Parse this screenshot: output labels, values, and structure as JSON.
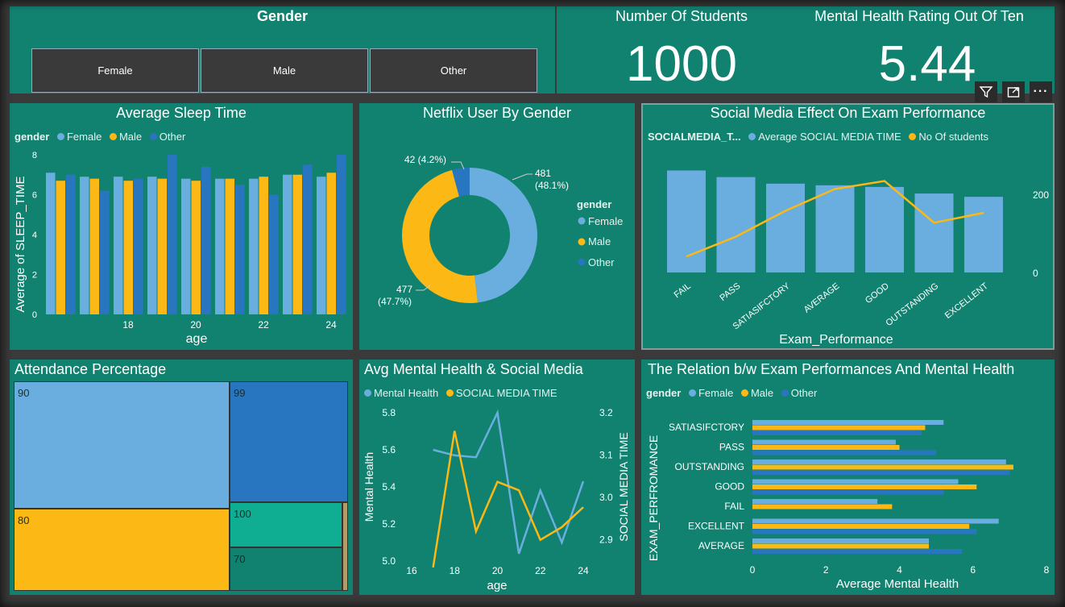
{
  "colors": {
    "female": "#6aaee0",
    "male": "#fcb814",
    "other": "#2876c0",
    "panel": "#128270"
  },
  "gender_slicer": {
    "title": "Gender",
    "options": [
      "Female",
      "Male",
      "Other"
    ]
  },
  "students_card": {
    "label": "Number Of Students",
    "value": "1000"
  },
  "mental_card": {
    "label": "Mental Health Rating Out Of Ten",
    "value": "5.44"
  },
  "toolbar": {
    "filter_icon": "filter-icon",
    "focus_icon": "focus-mode-icon",
    "more_icon": "more-options-icon",
    "more_label": "···"
  },
  "sleep_chart": {
    "title": "Average Sleep Time",
    "legend_title": "gender",
    "series_names": [
      "Female",
      "Male",
      "Other"
    ],
    "ylabel": "Average of SLEEP_TIME",
    "xlabel": "age",
    "yticks": [
      "0",
      "2",
      "4",
      "6",
      "8"
    ],
    "xticks": [
      "18",
      "20",
      "22",
      "24"
    ]
  },
  "netflix_chart": {
    "title": "Netflix User By Gender",
    "legend_title": "gender",
    "legend": [
      "Female",
      "Male",
      "Other"
    ],
    "labels": {
      "female_a": "481",
      "female_b": "(48.1%)",
      "male_a": "477",
      "male_b": "(47.7%)",
      "other": "42 (4.2%)"
    }
  },
  "social_chart": {
    "title": "Social Media Effect On Exam Performance",
    "legend_title": "SOCIALMEDIA_T...",
    "legend": [
      "Average SOCIAL MEDIA TIME",
      "No Of students"
    ],
    "xlabel": "Exam_Performance",
    "yticks_right": [
      "200",
      "0"
    ]
  },
  "attendance_chart": {
    "title": "Attendance Percentage"
  },
  "avgmental_chart": {
    "title": "Avg Mental Health & Social Media",
    "legend": [
      "Mental Health",
      "SOCIAL MEDIA TIME"
    ],
    "ylabel_left": "Mental Health",
    "ylabel_right": "SOCIAL MEDIA TIME",
    "xlabel": "age",
    "yticks_left": [
      "5.8",
      "5.6",
      "5.4",
      "5.2",
      "5.0"
    ],
    "yticks_right": [
      "3.2",
      "3.1",
      "3.0",
      "2.9"
    ],
    "xticks": [
      "16",
      "18",
      "20",
      "22",
      "24"
    ]
  },
  "relation_chart": {
    "title": "The Relation b/w Exam Performances And Mental Health",
    "legend_title": "gender",
    "series_names": [
      "Female",
      "Male",
      "Other"
    ],
    "ylabel": "EXAM_PERFROMANCE",
    "xlabel": "Average Mental Health",
    "xticks": [
      "0",
      "2",
      "4",
      "6",
      "8"
    ]
  },
  "chart_data": [
    {
      "type": "bar",
      "title": "Average Sleep Time",
      "xlabel": "age",
      "ylabel": "Average of SLEEP_TIME",
      "ylim": [
        0,
        8
      ],
      "categories": [
        16,
        17,
        18,
        19,
        20,
        21,
        22,
        23,
        24
      ],
      "series": [
        {
          "name": "Female",
          "values": [
            7.1,
            6.9,
            6.9,
            6.9,
            6.8,
            6.8,
            6.8,
            7.0,
            6.9
          ]
        },
        {
          "name": "Male",
          "values": [
            6.7,
            6.8,
            6.7,
            6.8,
            6.7,
            6.8,
            6.9,
            7.0,
            7.1
          ]
        },
        {
          "name": "Other",
          "values": [
            7.0,
            6.2,
            6.8,
            8.0,
            7.4,
            6.5,
            6.0,
            7.5,
            8.0
          ]
        }
      ],
      "legend": "top-left",
      "grid": false
    },
    {
      "type": "pie",
      "title": "Netflix User By Gender",
      "donut": true,
      "categories": [
        "Female",
        "Male",
        "Other"
      ],
      "values": [
        481,
        477,
        42
      ],
      "percent": [
        48.1,
        47.7,
        4.2
      ],
      "legend": "right"
    },
    {
      "type": "bar",
      "title": "Social Media Effect On Exam Performance",
      "xlabel": "Exam_Performance",
      "categories": [
        "FAIL",
        "PASS",
        "SATIASIFCTORY",
        "AVERAGE",
        "GOOD",
        "OUTSTANDING",
        "EXCELLENT"
      ],
      "series": [
        {
          "name": "Average SOCIAL MEDIA TIME",
          "type": "bar",
          "values": [
            3.1,
            2.9,
            2.7,
            2.65,
            2.6,
            2.4,
            2.3
          ]
        },
        {
          "name": "No Of students",
          "type": "line",
          "values": [
            40,
            90,
            155,
            210,
            230,
            125,
            150
          ]
        }
      ],
      "ylim_right": [
        0,
        300
      ],
      "legend": "top-left"
    },
    {
      "type": "treemap",
      "title": "Attendance Percentage",
      "categories": [
        "90",
        "80",
        "99",
        "100",
        "70"
      ],
      "values": [
        47,
        29,
        15,
        6,
        6
      ]
    },
    {
      "type": "line",
      "title": "Avg Mental Health & Social Media",
      "xlabel": "age",
      "x": [
        17,
        18,
        19,
        20,
        21,
        22,
        23,
        24
      ],
      "series": [
        {
          "name": "Mental Health",
          "axis": "left",
          "values": [
            5.6,
            5.57,
            5.56,
            5.8,
            5.04,
            5.38,
            5.1,
            5.43
          ]
        },
        {
          "name": "SOCIAL MEDIA TIME",
          "axis": "right",
          "values": [
            2.835,
            3.157,
            2.92,
            3.037,
            3.017,
            2.9,
            2.93,
            2.977
          ]
        }
      ],
      "ylim_left": [
        5.0,
        5.8
      ],
      "ylim_right": [
        2.85,
        3.2
      ],
      "legend": "top-left"
    },
    {
      "type": "bar",
      "orientation": "horizontal",
      "title": "The Relation b/w Exam Performances And Mental Health",
      "xlabel": "Average Mental Health",
      "ylabel": "EXAM_PERFROMANCE",
      "xlim": [
        0,
        8
      ],
      "categories": [
        "SATIASIFCTORY",
        "PASS",
        "OUTSTANDING",
        "GOOD",
        "FAIL",
        "EXCELLENT",
        "AVERAGE"
      ],
      "series": [
        {
          "name": "Female",
          "values": [
            5.2,
            3.9,
            6.9,
            5.6,
            3.4,
            6.7,
            4.8
          ]
        },
        {
          "name": "Male",
          "values": [
            4.7,
            4.0,
            7.1,
            6.1,
            3.8,
            5.9,
            4.8
          ]
        },
        {
          "name": "Other",
          "values": [
            4.6,
            5.0,
            7.0,
            5.2,
            0,
            6.1,
            5.7
          ]
        }
      ],
      "legend": "top-left"
    }
  ]
}
